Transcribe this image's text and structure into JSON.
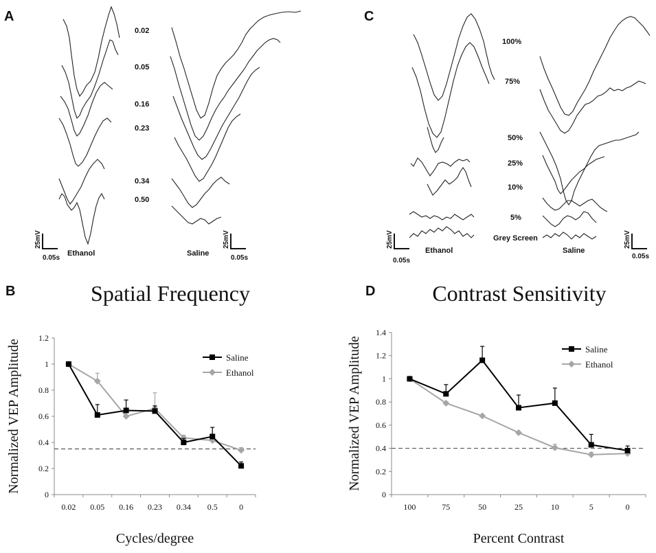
{
  "panels": {
    "a": "A",
    "b": "B",
    "c": "C",
    "d": "D"
  },
  "traces_a": {
    "frequency_labels": [
      "0.02",
      "0.05",
      "0.16",
      "0.23",
      "0.34",
      "0.50"
    ],
    "left_group": "Ethanol",
    "right_group": "Saline",
    "scale_amplitude": "25mV",
    "scale_time": "0.05s"
  },
  "traces_c": {
    "contrast_labels": [
      "100%",
      "75%",
      "50%",
      "25%",
      "10%",
      "5%",
      "Grey Screen"
    ],
    "left_group": "Ethanol",
    "right_group": "Saline",
    "scale_amplitude": "25mV",
    "scale_time": "0.05s"
  },
  "chart_data": [
    {
      "id": "B",
      "type": "line",
      "title": "Spatial Frequency",
      "xlabel": "Cycles/degree",
      "ylabel": "Normalized VEP Amplitude",
      "categories": [
        "0.02",
        "0.05",
        "0.16",
        "0.23",
        "0.34",
        "0.5",
        "0"
      ],
      "ylim": [
        0,
        1.2
      ],
      "yticks": [
        "0",
        "0.2",
        "0.4",
        "0.6",
        "0.8",
        "1",
        "1.2"
      ],
      "ytick_values": [
        0,
        0.2,
        0.4,
        0.6,
        0.8,
        1.0,
        1.2
      ],
      "reference_line": 0.35,
      "legend_position": "top-right",
      "series": [
        {
          "name": "Saline",
          "color": "#000000",
          "marker": "square",
          "values": [
            1.0,
            0.61,
            0.645,
            0.64,
            0.4,
            0.445,
            0.22
          ],
          "errors": [
            0,
            0.08,
            0.08,
            0.04,
            0.03,
            0.07,
            0.03
          ]
        },
        {
          "name": "Ethanol",
          "color": "#a6a6a6",
          "marker": "diamond",
          "values": [
            1.0,
            0.87,
            0.6,
            0.66,
            0.435,
            0.415,
            0.34
          ],
          "errors": [
            0,
            0.06,
            0.03,
            0.12,
            0.02,
            0.02,
            0.02
          ]
        }
      ]
    },
    {
      "id": "D",
      "type": "line",
      "title": "Contrast Sensitivity",
      "xlabel": "Percent Contrast",
      "ylabel": "Normalized VEP Amplitude",
      "categories": [
        "100",
        "75",
        "50",
        "25",
        "10",
        "5",
        "0"
      ],
      "ylim": [
        0,
        1.4
      ],
      "yticks": [
        "0",
        "0.2",
        "0.4",
        "0.6",
        "0.8",
        "1",
        "1.2",
        "1.4"
      ],
      "ytick_values": [
        0,
        0.2,
        0.4,
        0.6,
        0.8,
        1.0,
        1.2,
        1.4
      ],
      "reference_line": 0.4,
      "legend_position": "top-right",
      "series": [
        {
          "name": "Saline",
          "color": "#000000",
          "marker": "square",
          "values": [
            1.0,
            0.87,
            1.16,
            0.75,
            0.79,
            0.43,
            0.38
          ],
          "errors": [
            0,
            0.08,
            0.12,
            0.11,
            0.13,
            0.09,
            0.04
          ]
        },
        {
          "name": "Ethanol",
          "color": "#a6a6a6",
          "marker": "diamond",
          "values": [
            1.0,
            0.79,
            0.68,
            0.535,
            0.405,
            0.345,
            0.355
          ],
          "errors": [
            0,
            0,
            0,
            0,
            0.03,
            0.02,
            0.02
          ]
        }
      ]
    }
  ]
}
